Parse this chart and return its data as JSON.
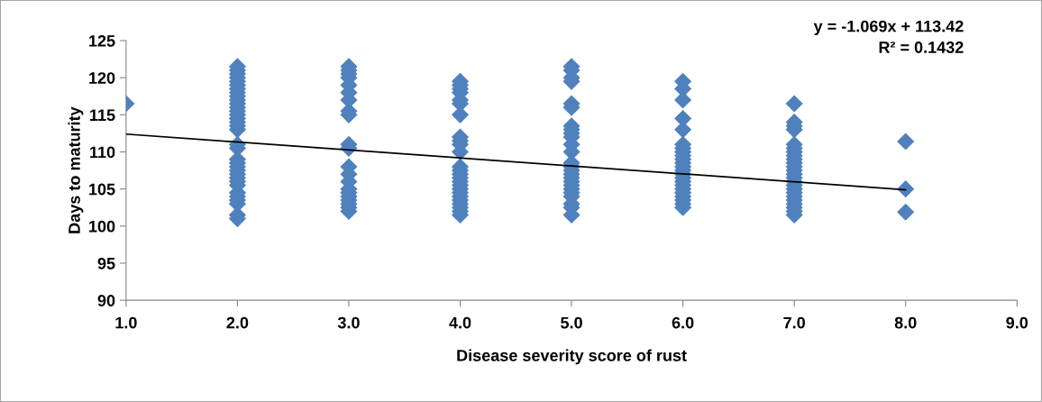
{
  "chart_data": {
    "type": "scatter",
    "xlabel": "Disease severity score of rust",
    "ylabel": "Days to maturity",
    "xlim": [
      1,
      9
    ],
    "ylim": [
      90,
      125
    ],
    "xticks": [
      {
        "value": 1,
        "label": "1.0"
      },
      {
        "value": 2,
        "label": "2.0"
      },
      {
        "value": 3,
        "label": "3.0"
      },
      {
        "value": 4,
        "label": "4.0"
      },
      {
        "value": 5,
        "label": "5.0"
      },
      {
        "value": 6,
        "label": "6.0"
      },
      {
        "value": 7,
        "label": "7.0"
      },
      {
        "value": 8,
        "label": "8.0"
      },
      {
        "value": 9,
        "label": "9.0"
      }
    ],
    "yticks": [
      90,
      95,
      100,
      105,
      110,
      115,
      120,
      125
    ],
    "grid": false,
    "legend": false,
    "annotations": [
      "y = -1.069x + 113.42",
      "R² = 0.1432"
    ],
    "series": [
      {
        "color": "#4f81bd",
        "marker": "diamond",
        "x": [
          1,
          2,
          2,
          2,
          2,
          2,
          2,
          2,
          2,
          2,
          2,
          2,
          2,
          2,
          2,
          2,
          2,
          2,
          2,
          2,
          2,
          2,
          2,
          2,
          2,
          2,
          2,
          2,
          2,
          2,
          2,
          2,
          2,
          2,
          2,
          3,
          3,
          3,
          3,
          3,
          3,
          3,
          3,
          3,
          3,
          3,
          3,
          3,
          3,
          3,
          3,
          3,
          3,
          3,
          3,
          3,
          4,
          4,
          4,
          4,
          4,
          4,
          4,
          4,
          4,
          4,
          4,
          4,
          4,
          4,
          4,
          4,
          4,
          4,
          4,
          4,
          4,
          4,
          4,
          4,
          4,
          5,
          5,
          5,
          5,
          5,
          5,
          5,
          5,
          5,
          5,
          5,
          5,
          5,
          5,
          5,
          5,
          5,
          5,
          5,
          5,
          5,
          5,
          5,
          5,
          5,
          6,
          6,
          6,
          6,
          6,
          6,
          6,
          6,
          6,
          6,
          6,
          6,
          6,
          6,
          6,
          6,
          6,
          6,
          6,
          6,
          6,
          6,
          6,
          7,
          7,
          7,
          7,
          7,
          7,
          7,
          7,
          7,
          7,
          7,
          7,
          7,
          7,
          7,
          7,
          7,
          7,
          7,
          7,
          7,
          7,
          7,
          7,
          8,
          8,
          8
        ],
        "values": [
          116.5,
          121.5,
          121,
          120.5,
          120,
          119.5,
          119,
          118.5,
          118,
          117.5,
          117,
          116.5,
          116,
          115.5,
          115,
          114.5,
          114,
          113.5,
          113,
          111,
          110.5,
          109,
          108.5,
          108,
          107.5,
          107,
          106.5,
          106,
          105.5,
          104.5,
          104,
          103.5,
          103,
          101.5,
          101,
          121.5,
          121,
          120.5,
          120,
          119,
          118,
          117,
          115.5,
          115,
          111,
          110.5,
          108,
          107,
          106,
          105,
          104.5,
          104,
          103.5,
          103,
          102.5,
          102,
          119.5,
          119,
          118.5,
          118,
          117,
          116.5,
          115,
          112,
          111.5,
          111,
          110,
          108,
          107.5,
          107,
          106.5,
          106,
          105.5,
          105,
          104.5,
          104,
          103.5,
          103,
          102.5,
          102,
          101.5,
          121.5,
          121,
          120,
          119.5,
          116.5,
          116,
          113.5,
          113,
          112.5,
          112,
          111,
          110,
          108.5,
          108,
          107.5,
          107,
          106.5,
          106,
          105.5,
          105,
          104.5,
          104,
          103,
          102.5,
          101.5,
          119.5,
          118.5,
          117,
          114.5,
          113,
          111,
          110.5,
          110,
          109.5,
          109,
          108.5,
          108,
          107.5,
          107,
          106.5,
          106,
          105.5,
          105,
          104.5,
          104,
          103.5,
          103,
          102.5,
          116.5,
          114,
          113.5,
          113,
          111,
          110.5,
          110,
          109.5,
          109,
          108.5,
          108,
          107.5,
          107,
          106.5,
          106,
          105.5,
          105,
          104.5,
          104,
          103.5,
          103,
          102.5,
          102,
          101.5,
          111.4,
          105,
          101.9
        ]
      },
      {
        "type": "line",
        "color": "#000000",
        "marker": "none",
        "line_style": "solid",
        "x": [
          1,
          8
        ],
        "values": [
          112.4,
          104.9
        ]
      }
    ]
  }
}
